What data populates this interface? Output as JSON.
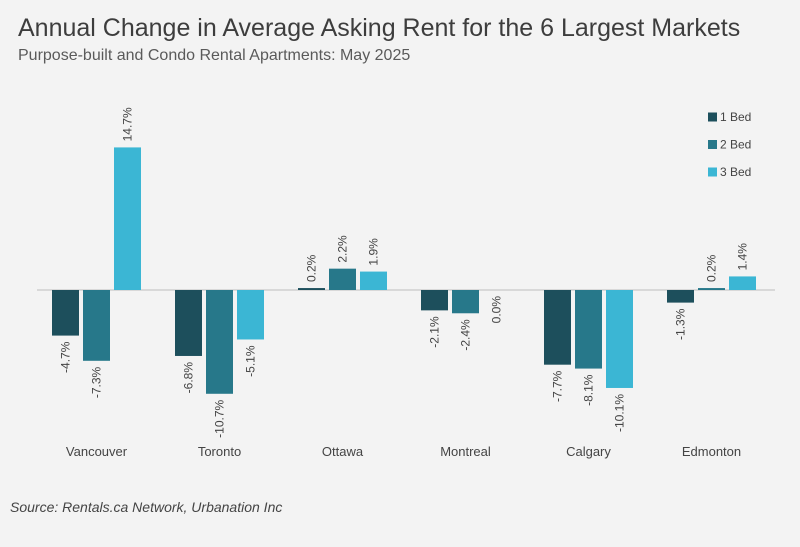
{
  "title": "Annual Change in Average Asking Rent for the 6 Largest Markets",
  "subtitle": "Purpose-built and Condo Rental Apartments: May 2025",
  "source": "Source: Rentals.ca Network, Urbanation Inc",
  "colors": {
    "background": "#f3f3f3",
    "series": [
      "#1d4f5c",
      "#27788a",
      "#3bb6d4"
    ],
    "axis": "#bdbdbd",
    "text": "#444444"
  },
  "chart_data": {
    "type": "bar",
    "title": "Annual Change in Average Asking Rent for the 6 Largest Markets",
    "subtitle": "Purpose-built and Condo Rental Apartments: May 2025",
    "xlabel": "",
    "ylabel": "",
    "categories": [
      "Vancouver",
      "Toronto",
      "Ottawa",
      "Montreal",
      "Calgary",
      "Edmonton"
    ],
    "series": [
      {
        "name": "1 Bed",
        "values": [
          -4.7,
          -6.8,
          0.2,
          -2.1,
          -7.7,
          -1.3
        ],
        "labels": [
          "-4.7%",
          "-6.8%",
          "0.2%",
          "-2.1%",
          "-7.7%",
          "-1.3%"
        ]
      },
      {
        "name": "2 Bed",
        "values": [
          -7.3,
          -10.7,
          2.2,
          -2.4,
          -8.1,
          0.2
        ],
        "labels": [
          "-7.3%",
          "-10.7%",
          "2.2%",
          "-2.4%",
          "-8.1%",
          "0.2%"
        ]
      },
      {
        "name": "3 Bed",
        "values": [
          14.7,
          -5.1,
          1.9,
          0.0,
          -10.1,
          1.4
        ],
        "labels": [
          "14.7%",
          "-5.1%",
          "1.9%",
          "0.0%",
          "-10.1%",
          "1.4%"
        ]
      }
    ],
    "ylim": [
      -11,
      15
    ],
    "grid": false,
    "legend": "top-right"
  }
}
